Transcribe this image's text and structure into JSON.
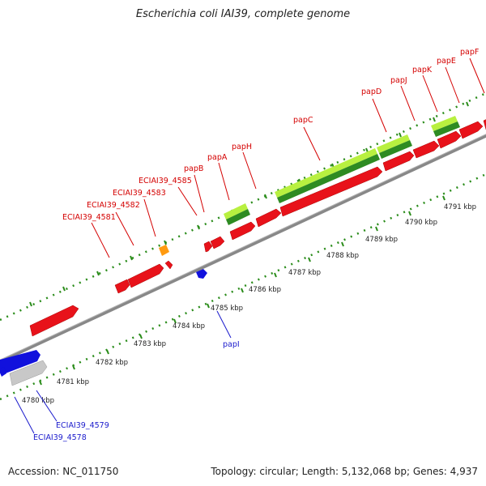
{
  "title": "Escherichia coli IAI39, complete genome",
  "footer": {
    "accession": "Accession: NC_011750",
    "summary": "Topology: circular; Length: 5,132,068 bp; Genes: 4,937"
  },
  "colors": {
    "forward_gene": "#e8121a",
    "reverse_gene": "#1111dd",
    "rna_light": "#b8f040",
    "rna_dark": "#2e8b22",
    "pseudo": "#c8c8c8",
    "misc": "#ff9a10",
    "backbone": "#8c8c8c",
    "tick": "#2a8c1a",
    "label_forward": "#d40000",
    "label_reverse": "#1a1acc"
  },
  "scale_ticks": [
    "4780 kbp",
    "4781 kbp",
    "4782 kbp",
    "4783 kbp",
    "4784 kbp",
    "4785 kbp",
    "4786 kbp",
    "4787 kbp",
    "4788 kbp",
    "4789 kbp",
    "4790 kbp",
    "4791 kbp"
  ],
  "forward_labels": [
    "ECIAI39_4581",
    "ECIAI39_4582",
    "ECIAI39_4583",
    "ECIAI39_4585",
    "papB",
    "papA",
    "papH",
    "papC",
    "papD",
    "papJ",
    "papK",
    "papE",
    "papF"
  ],
  "reverse_labels": [
    "papI",
    "ECIAI39_4579",
    "ECIAI39_4578"
  ]
}
